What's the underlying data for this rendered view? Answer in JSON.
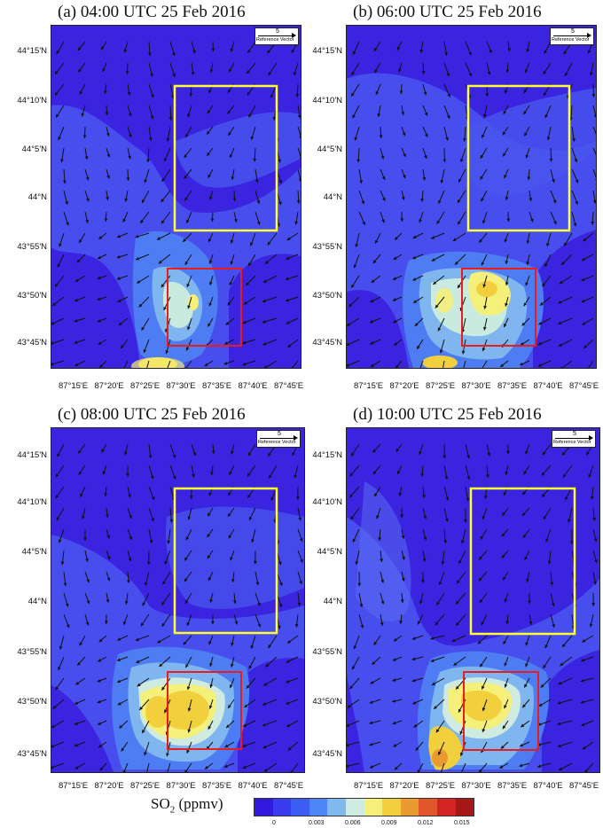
{
  "panels": [
    {
      "title": "(a) 04:00 UTC 25 Feb 2016"
    },
    {
      "title": "(b) 06:00 UTC 25 Feb 2016"
    },
    {
      "title": "(c) 08:00 UTC 25 Feb 2016"
    },
    {
      "title": "(d) 10:00 UTC 25 Feb 2016"
    }
  ],
  "lat_ticks": [
    "44°15'N",
    "44°10'N",
    "44°5'N",
    "44°N",
    "43°55'N",
    "43°50'N",
    "43°45'N"
  ],
  "lon_ticks": [
    "87°15'E",
    "87°20'E",
    "87°25'E",
    "87°30'E",
    "87°35'E",
    "87°40'E",
    "87°45'E"
  ],
  "reference_vector": {
    "magnitude": "5",
    "label": "Reference Vector"
  },
  "colorbar": {
    "title": "SO",
    "title_sub": "2",
    "title_unit": " (ppmv)",
    "ticks": [
      "0",
      "0.003",
      "0.006",
      "0.009",
      "0.012",
      "0.015"
    ],
    "colors": [
      "#3318e0",
      "#3a3cf0",
      "#3d5ef5",
      "#4d86f5",
      "#80b8f0",
      "#cfeae0",
      "#f5f07a",
      "#f2cf3c",
      "#eb9a30",
      "#e0572a",
      "#d42424",
      "#a61818"
    ]
  },
  "boxes": {
    "north_region_color": "#ffff33",
    "south_region_color": "#e81e1e"
  }
}
